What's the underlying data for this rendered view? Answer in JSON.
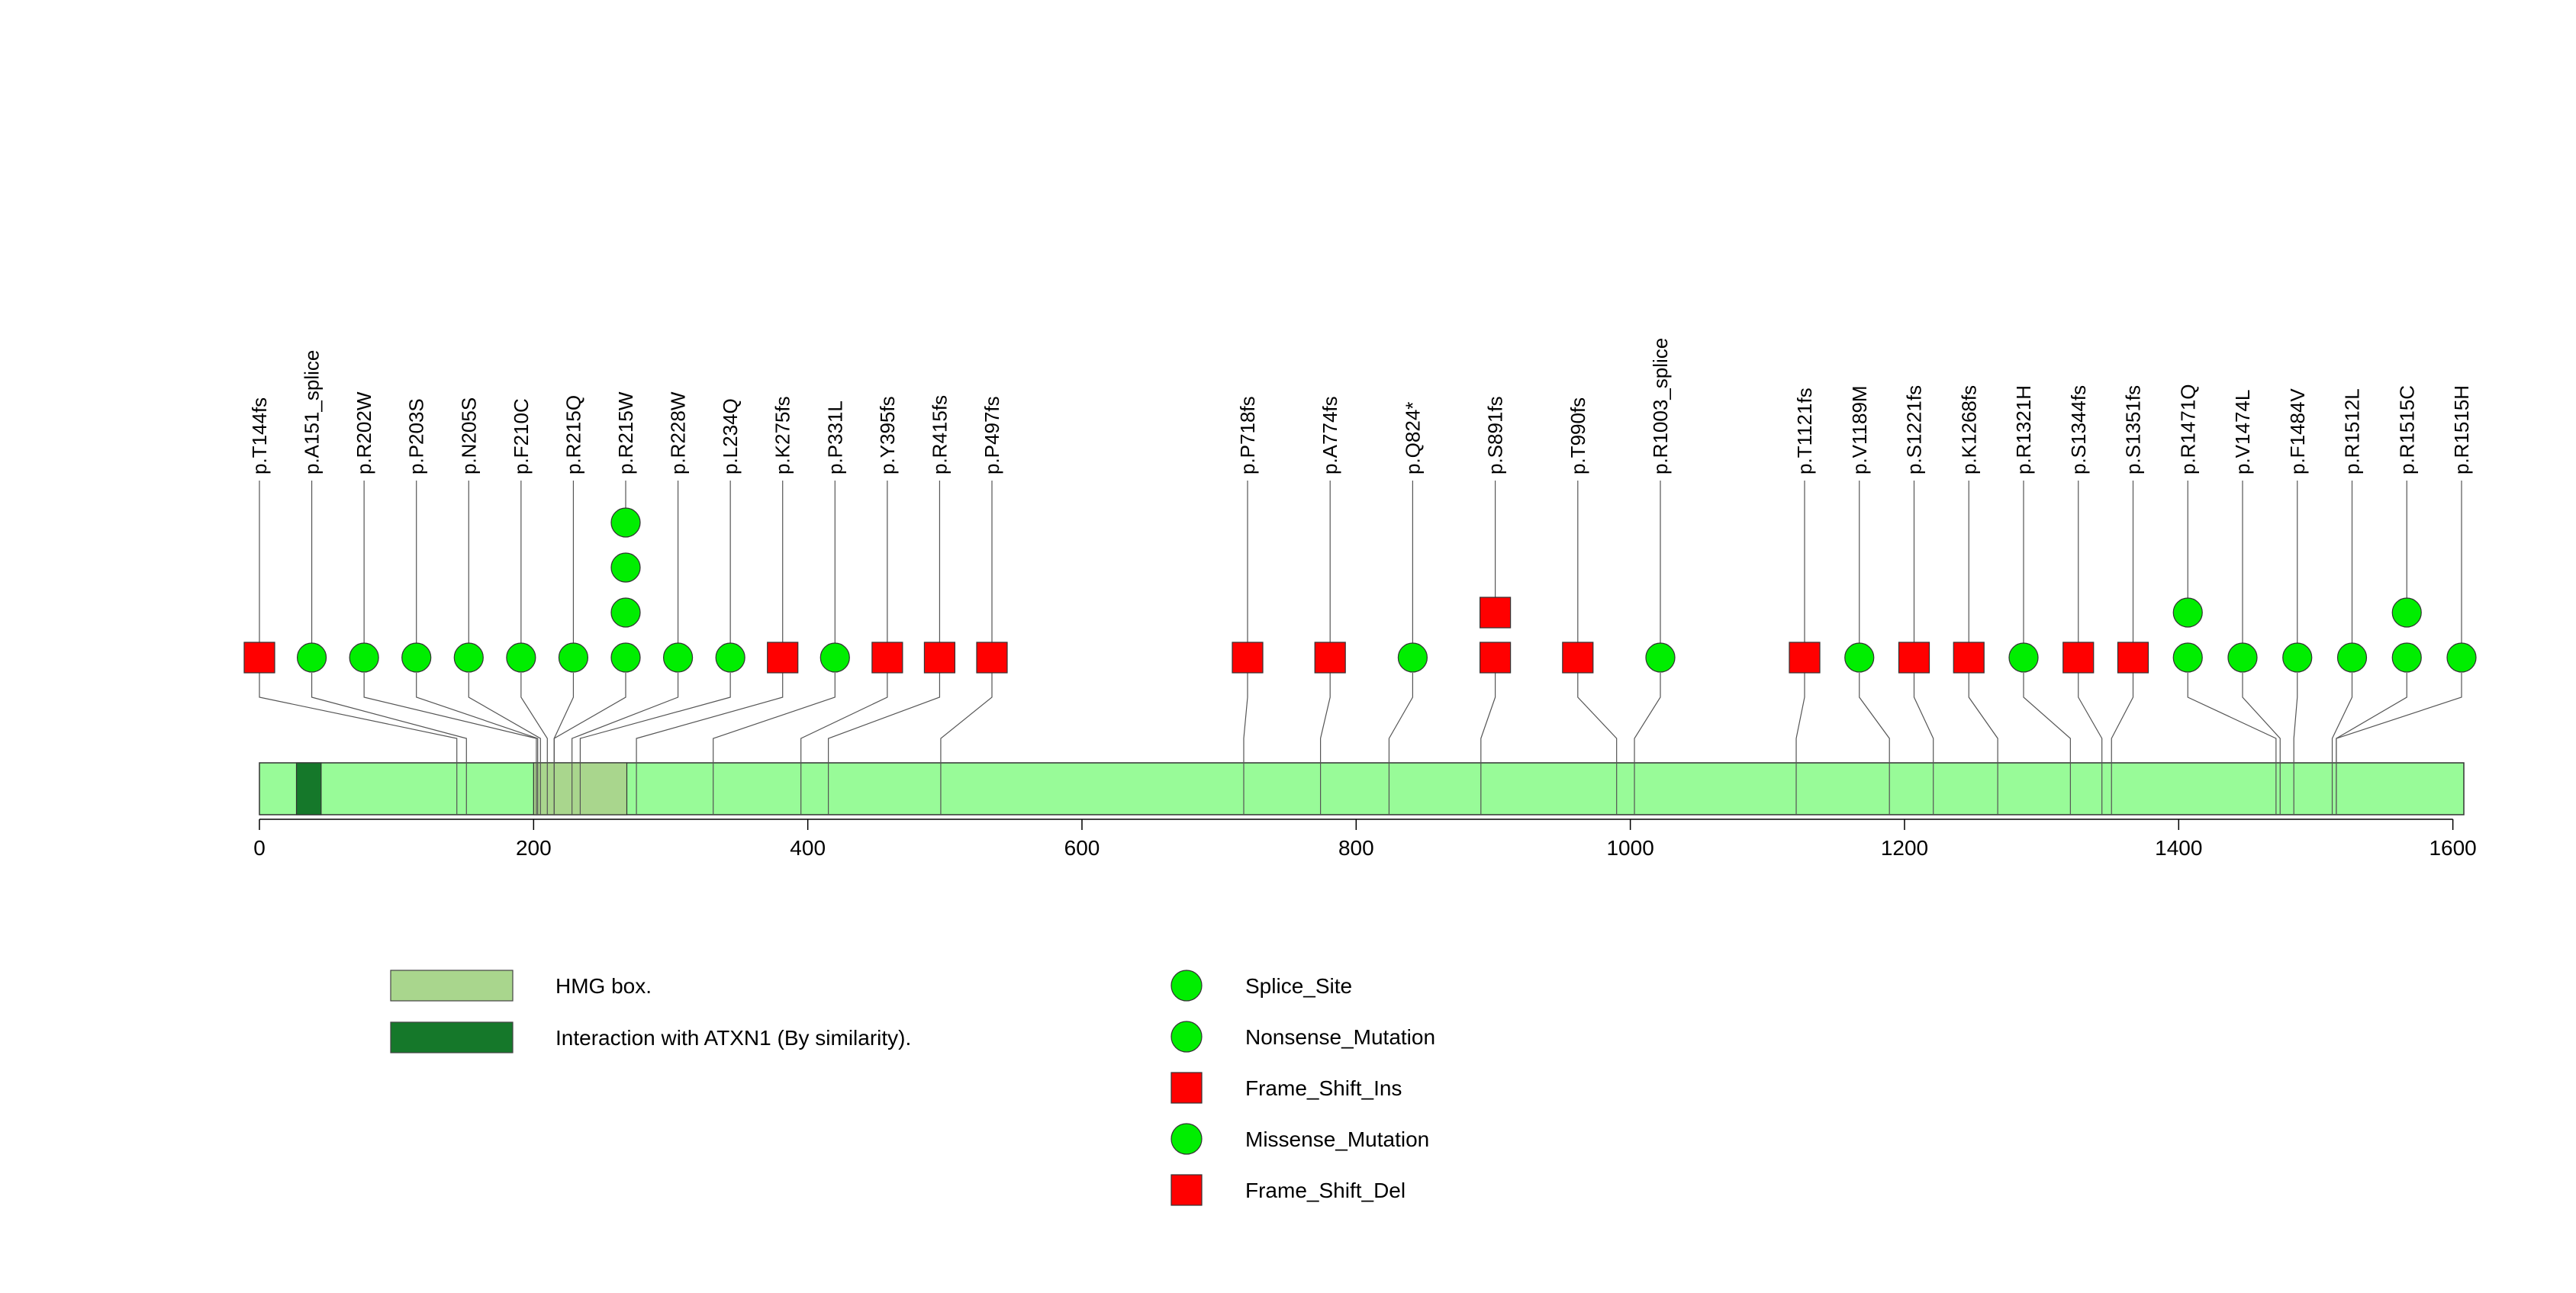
{
  "chart_data": {
    "type": "lollipop",
    "axis": {
      "min": 0,
      "max": 1608,
      "ticks": [
        0,
        200,
        400,
        600,
        800,
        1000,
        1200,
        1400,
        1600
      ]
    },
    "domains": [
      {
        "name": "HMG box.",
        "start": 200,
        "end": 268,
        "color": "#a9d68d"
      },
      {
        "name": "Interaction with ATXN1 (By similarity).",
        "start": 27,
        "end": 45,
        "color": "#15782a"
      }
    ],
    "mutations": [
      {
        "label": "p.T144fs",
        "position": 144,
        "markers": [
          "Frame_Shift_Del"
        ]
      },
      {
        "label": "p.A151_splice",
        "position": 151,
        "markers": [
          "Splice_Site"
        ]
      },
      {
        "label": "p.R202W",
        "position": 202,
        "markers": [
          "Missense_Mutation"
        ]
      },
      {
        "label": "p.P203S",
        "position": 203,
        "markers": [
          "Missense_Mutation"
        ]
      },
      {
        "label": "p.N205S",
        "position": 205,
        "markers": [
          "Missense_Mutation"
        ]
      },
      {
        "label": "p.F210C",
        "position": 210,
        "markers": [
          "Missense_Mutation"
        ]
      },
      {
        "label": "p.R215Q",
        "position": 215,
        "markers": [
          "Missense_Mutation"
        ]
      },
      {
        "label": "p.R215W",
        "position": 215,
        "markers": [
          "Missense_Mutation",
          "Missense_Mutation",
          "Missense_Mutation",
          "Missense_Mutation"
        ]
      },
      {
        "label": "p.R228W",
        "position": 228,
        "markers": [
          "Missense_Mutation"
        ]
      },
      {
        "label": "p.L234Q",
        "position": 234,
        "markers": [
          "Missense_Mutation"
        ]
      },
      {
        "label": "p.K275fs",
        "position": 275,
        "markers": [
          "Frame_Shift_Del"
        ]
      },
      {
        "label": "p.P331L",
        "position": 331,
        "markers": [
          "Missense_Mutation"
        ]
      },
      {
        "label": "p.Y395fs",
        "position": 395,
        "markers": [
          "Frame_Shift_Del"
        ]
      },
      {
        "label": "p.R415fs",
        "position": 415,
        "markers": [
          "Frame_Shift_Del"
        ]
      },
      {
        "label": "p.P497fs",
        "position": 497,
        "markers": [
          "Frame_Shift_Del"
        ]
      },
      {
        "label": "p.P718fs",
        "position": 718,
        "markers": [
          "Frame_Shift_Del"
        ]
      },
      {
        "label": "p.A774fs",
        "position": 774,
        "markers": [
          "Frame_Shift_Del"
        ]
      },
      {
        "label": "p.Q824*",
        "position": 824,
        "markers": [
          "Nonsense_Mutation"
        ]
      },
      {
        "label": "p.S891fs",
        "position": 891,
        "markers": [
          "Frame_Shift_Del",
          "Frame_Shift_Del"
        ]
      },
      {
        "label": "p.T990fs",
        "position": 990,
        "markers": [
          "Frame_Shift_Del"
        ]
      },
      {
        "label": "p.R1003_splice",
        "position": 1003,
        "markers": [
          "Splice_Site"
        ]
      },
      {
        "label": "p.T1121fs",
        "position": 1121,
        "markers": [
          "Frame_Shift_Del"
        ]
      },
      {
        "label": "p.V1189M",
        "position": 1189,
        "markers": [
          "Missense_Mutation"
        ]
      },
      {
        "label": "p.S1221fs",
        "position": 1221,
        "markers": [
          "Frame_Shift_Del"
        ]
      },
      {
        "label": "p.K1268fs",
        "position": 1268,
        "markers": [
          "Frame_Shift_Del"
        ]
      },
      {
        "label": "p.R1321H",
        "position": 1321,
        "markers": [
          "Missense_Mutation"
        ]
      },
      {
        "label": "p.S1344fs",
        "position": 1344,
        "markers": [
          "Frame_Shift_Del"
        ]
      },
      {
        "label": "p.S1351fs",
        "position": 1351,
        "markers": [
          "Frame_Shift_Del"
        ]
      },
      {
        "label": "p.R1471Q",
        "position": 1471,
        "markers": [
          "Missense_Mutation",
          "Missense_Mutation"
        ]
      },
      {
        "label": "p.V1474L",
        "position": 1474,
        "markers": [
          "Missense_Mutation"
        ]
      },
      {
        "label": "p.F1484V",
        "position": 1484,
        "markers": [
          "Missense_Mutation"
        ]
      },
      {
        "label": "p.R1512L",
        "position": 1512,
        "markers": [
          "Missense_Mutation"
        ]
      },
      {
        "label": "p.R1515C",
        "position": 1515,
        "markers": [
          "Missense_Mutation",
          "Missense_Mutation"
        ]
      },
      {
        "label": "p.R1515H",
        "position": 1515,
        "markers": [
          "Missense_Mutation"
        ]
      }
    ],
    "legend_domains": [
      {
        "name": "HMG box.",
        "color": "#a9d68d"
      },
      {
        "name": "Interaction with ATXN1 (By similarity).",
        "color": "#15782a"
      }
    ],
    "legend_mutations": [
      {
        "name": "Splice_Site",
        "shape": "circle",
        "color": "#00ee00"
      },
      {
        "name": "Nonsense_Mutation",
        "shape": "circle",
        "color": "#00ee00"
      },
      {
        "name": "Frame_Shift_Ins",
        "shape": "square",
        "color": "#ff0000"
      },
      {
        "name": "Missense_Mutation",
        "shape": "circle",
        "color": "#00ee00"
      },
      {
        "name": "Frame_Shift_Del",
        "shape": "square",
        "color": "#ff0000"
      }
    ],
    "colors": {
      "protein_bar": "#98fb98",
      "circle_fill": "#00ee00",
      "square_fill": "#ff0000",
      "stroke": "#333333"
    }
  }
}
